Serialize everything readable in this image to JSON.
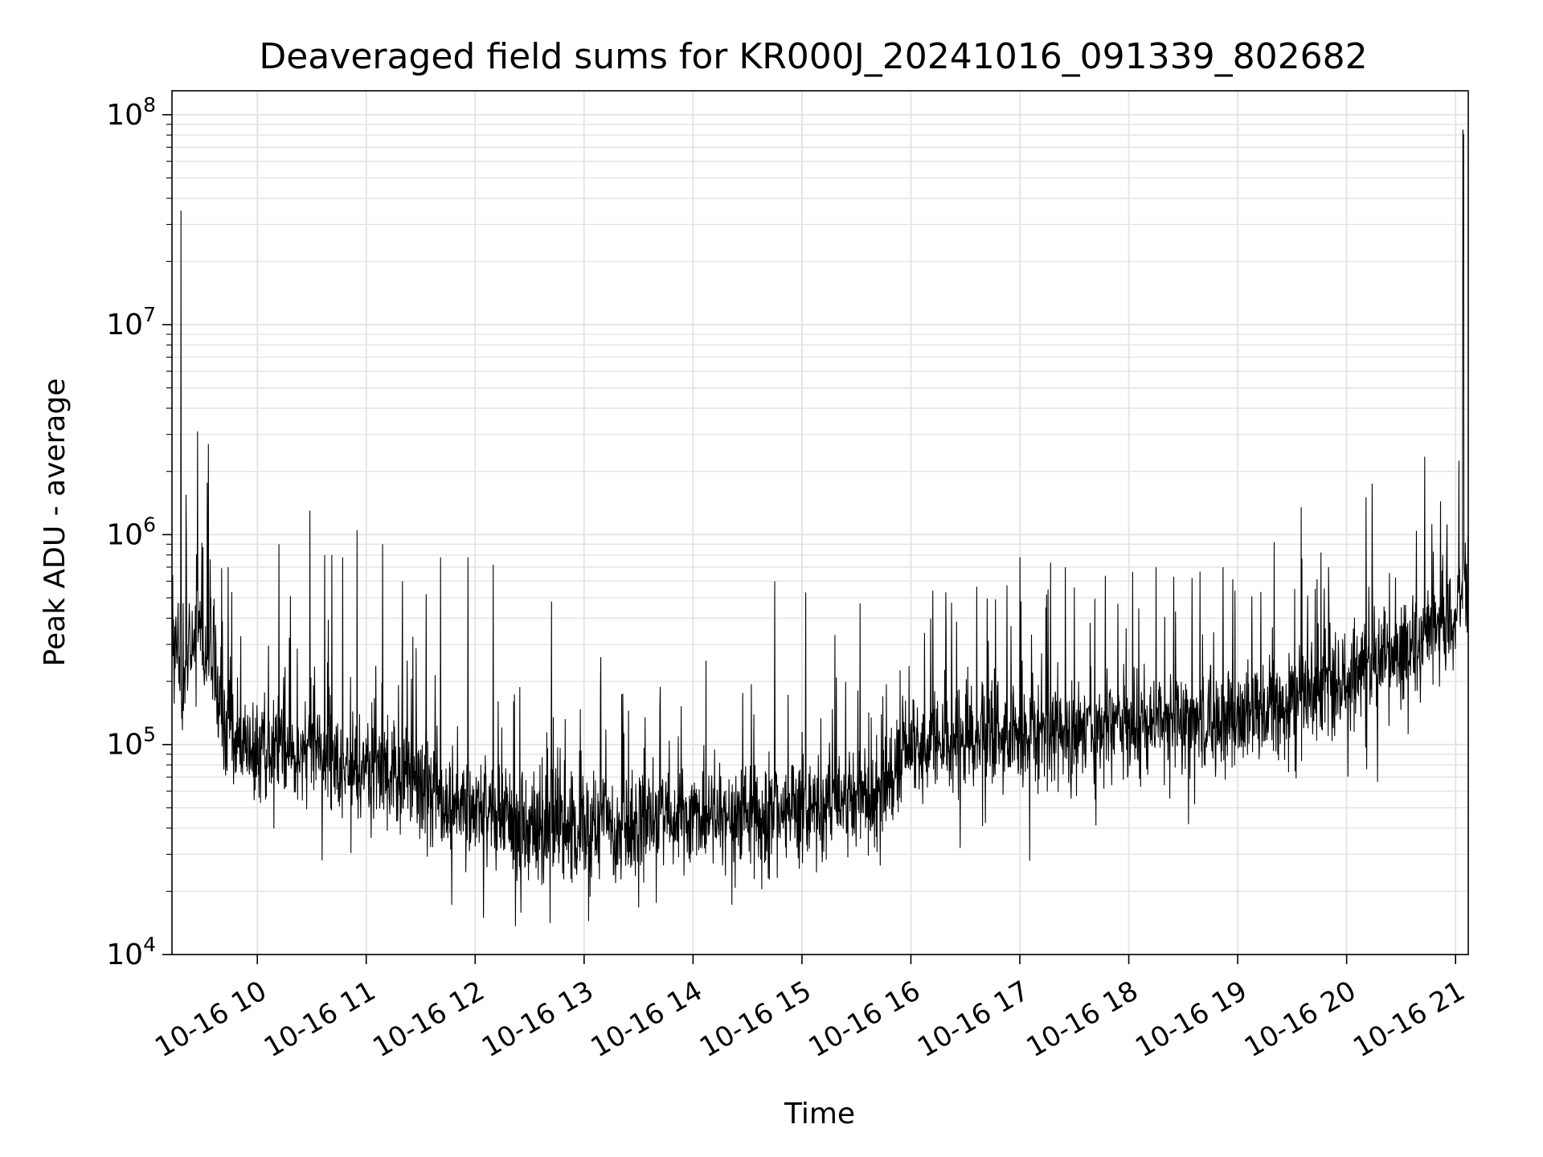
{
  "chart_data": {
    "type": "line",
    "title": "Deaveraged field sums for KR000J_20241016_091339_802682",
    "xlabel": "Time",
    "ylabel": "Peak ADU - average",
    "xscale": "time",
    "yscale": "log",
    "grid": true,
    "xlim": [
      "2024-10-16 09:13",
      "2024-10-16 21:07"
    ],
    "ylim": [
      10000,
      130000000
    ],
    "x_ticks": [
      {
        "t": "2024-10-16 10:00",
        "label": "10-16 10"
      },
      {
        "t": "2024-10-16 11:00",
        "label": "10-16 11"
      },
      {
        "t": "2024-10-16 12:00",
        "label": "10-16 12"
      },
      {
        "t": "2024-10-16 13:00",
        "label": "10-16 13"
      },
      {
        "t": "2024-10-16 14:00",
        "label": "10-16 14"
      },
      {
        "t": "2024-10-16 15:00",
        "label": "10-16 15"
      },
      {
        "t": "2024-10-16 16:00",
        "label": "10-16 16"
      },
      {
        "t": "2024-10-16 17:00",
        "label": "10-16 17"
      },
      {
        "t": "2024-10-16 18:00",
        "label": "10-16 18"
      },
      {
        "t": "2024-10-16 19:00",
        "label": "10-16 19"
      },
      {
        "t": "2024-10-16 20:00",
        "label": "10-16 20"
      },
      {
        "t": "2024-10-16 21:00",
        "label": "10-16 21"
      }
    ],
    "y_ticks": [
      {
        "value": 10000,
        "base": "10",
        "exp": "4"
      },
      {
        "value": 100000,
        "base": "10",
        "exp": "5"
      },
      {
        "value": 1000000,
        "base": "10",
        "exp": "6"
      },
      {
        "value": 10000000,
        "base": "10",
        "exp": "7"
      },
      {
        "value": 100000000,
        "base": "10",
        "exp": "8"
      }
    ],
    "line_color": "#000000",
    "grid_color": "#e3e3e3",
    "series": [
      {
        "x": [
          "2024-10-16 09:13",
          "2024-10-16 09:16",
          "2024-10-16 09:19",
          "2024-10-16 09:21",
          "2024-10-16 09:24",
          "2024-10-16 09:26",
          "2024-10-16 09:29",
          "2024-10-16 09:32",
          "2024-10-16 09:35",
          "2024-10-16 09:38",
          "2024-10-16 09:41",
          "2024-10-16 09:45",
          "2024-10-16 09:48",
          "2024-10-16 09:52",
          "2024-10-16 09:56",
          "2024-10-16 10:00",
          "2024-10-16 10:15",
          "2024-10-16 10:30",
          "2024-10-16 10:45",
          "2024-10-16 11:00",
          "2024-10-16 11:15",
          "2024-10-16 11:30",
          "2024-10-16 11:45",
          "2024-10-16 12:00",
          "2024-10-16 12:15",
          "2024-10-16 12:30",
          "2024-10-16 12:45",
          "2024-10-16 13:00",
          "2024-10-16 13:15",
          "2024-10-16 13:30",
          "2024-10-16 13:45",
          "2024-10-16 14:00",
          "2024-10-16 14:15",
          "2024-10-16 14:30",
          "2024-10-16 14:45",
          "2024-10-16 15:00",
          "2024-10-16 15:15",
          "2024-10-16 15:30",
          "2024-10-16 15:45",
          "2024-10-16 15:50",
          "2024-10-16 15:52",
          "2024-10-16 16:00",
          "2024-10-16 16:15",
          "2024-10-16 16:30",
          "2024-10-16 16:45",
          "2024-10-16 17:00",
          "2024-10-16 17:15",
          "2024-10-16 17:30",
          "2024-10-16 17:45",
          "2024-10-16 18:00",
          "2024-10-16 18:15",
          "2024-10-16 18:30",
          "2024-10-16 18:45",
          "2024-10-16 19:00",
          "2024-10-16 19:15",
          "2024-10-16 19:30",
          "2024-10-16 19:45",
          "2024-10-16 20:00",
          "2024-10-16 20:15",
          "2024-10-16 20:30",
          "2024-10-16 20:45",
          "2024-10-16 21:00",
          "2024-10-16 21:07"
        ],
        "trend": [
          300000,
          250000,
          200000,
          300000,
          260000,
          400000,
          380000,
          300000,
          250000,
          180000,
          120000,
          110000,
          100000,
          100000,
          100000,
          100000,
          95000,
          90000,
          80000,
          75000,
          70000,
          62000,
          55000,
          50000,
          45000,
          42000,
          40000,
          41000,
          42000,
          42000,
          43000,
          44000,
          45000,
          47000,
          48000,
          50000,
          52000,
          55000,
          57000,
          58000,
          90000,
          95000,
          100000,
          103000,
          106000,
          110000,
          112000,
          115000,
          118000,
          122000,
          126000,
          130000,
          135000,
          140000,
          150000,
          165000,
          185000,
          210000,
          240000,
          280000,
          330000,
          420000,
          550000
        ]
      }
    ],
    "peaks": [
      {
        "t": "2024-10-16 09:18",
        "value": 35000000
      },
      {
        "t": "2024-10-16 09:27",
        "value": 3100000
      },
      {
        "t": "2024-10-16 09:33",
        "value": 2700000
      },
      {
        "t": "2024-10-16 09:44",
        "value": 700000
      },
      {
        "t": "2024-10-16 10:12",
        "value": 900000
      },
      {
        "t": "2024-10-16 10:29",
        "value": 1300000
      },
      {
        "t": "2024-10-16 10:37",
        "value": 800000
      },
      {
        "t": "2024-10-16 10:41",
        "value": 800000
      },
      {
        "t": "2024-10-16 10:47",
        "value": 780000
      },
      {
        "t": "2024-10-16 10:55",
        "value": 1050000
      },
      {
        "t": "2024-10-16 11:09",
        "value": 900000
      },
      {
        "t": "2024-10-16 11:20",
        "value": 600000
      },
      {
        "t": "2024-10-16 11:33",
        "value": 520000
      },
      {
        "t": "2024-10-16 11:41",
        "value": 780000
      },
      {
        "t": "2024-10-16 11:56",
        "value": 780000
      },
      {
        "t": "2024-10-16 12:10",
        "value": 720000
      },
      {
        "t": "2024-10-16 12:42",
        "value": 480000
      },
      {
        "t": "2024-10-16 14:45",
        "value": 600000
      },
      {
        "t": "2024-10-16 15:02",
        "value": 530000
      },
      {
        "t": "2024-10-16 15:32",
        "value": 470000
      },
      {
        "t": "2024-10-16 16:12",
        "value": 540000
      },
      {
        "t": "2024-10-16 17:00",
        "value": 780000
      },
      {
        "t": "2024-10-16 17:25",
        "value": 700000
      },
      {
        "t": "2024-10-16 17:30",
        "value": 560000
      },
      {
        "t": "2024-10-16 18:15",
        "value": 700000
      },
      {
        "t": "2024-10-16 18:52",
        "value": 700000
      },
      {
        "t": "2024-10-16 19:20",
        "value": 920000
      },
      {
        "t": "2024-10-16 19:35",
        "value": 1350000
      },
      {
        "t": "2024-10-16 19:50",
        "value": 700000
      },
      {
        "t": "2024-10-16 20:14",
        "value": 1750000
      },
      {
        "t": "2024-10-16 20:43",
        "value": 2350000
      },
      {
        "t": "2024-10-16 20:53",
        "value": 800000
      },
      {
        "t": "2024-10-16 21:04",
        "value": 85000000
      }
    ]
  }
}
